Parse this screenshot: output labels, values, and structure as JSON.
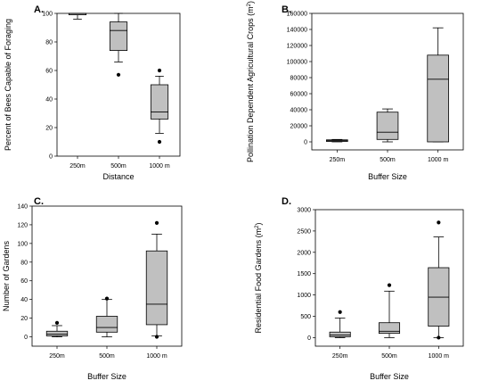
{
  "style": {
    "box_fill": "#c0c0c0",
    "stroke": "#000000",
    "outlier_color": "#000000"
  },
  "chart_data": [
    {
      "type": "box",
      "panel_label": "A.",
      "xlabel": "Distance",
      "ylabel": "Percent of Bees Capable of Foraging",
      "ylim": [
        0,
        100
      ],
      "yticks": [
        0,
        20,
        40,
        60,
        80,
        100
      ],
      "ytick_labels": [
        "0",
        "20",
        "40",
        "60",
        "80",
        "100"
      ],
      "categories": [
        "250m",
        "500m",
        "1000 m"
      ],
      "boxes": [
        {
          "whisker_low": 96,
          "q1": 99,
          "median": 100,
          "q3": 100,
          "whisker_high": 100,
          "outliers": []
        },
        {
          "whisker_low": 66,
          "q1": 74,
          "median": 88,
          "q3": 94,
          "whisker_high": 100,
          "outliers": [
            57
          ]
        },
        {
          "whisker_low": 16,
          "q1": 26,
          "median": 31,
          "q3": 50,
          "whisker_high": 56,
          "outliers": [
            60,
            10
          ]
        }
      ]
    },
    {
      "type": "box",
      "panel_label": "B.",
      "xlabel": "Buffer Size",
      "ylabel": "Pollination Dependent Agricultural Crops (m²)",
      "ylim": [
        -10000,
        160000
      ],
      "yticks": [
        0,
        20000,
        40000,
        60000,
        80000,
        100000,
        120000,
        140000,
        160000
      ],
      "ytick_labels": [
        "0",
        "20000",
        "40000",
        "60000",
        "80000",
        "100000",
        "120000",
        "140000",
        "160000"
      ],
      "categories": [
        "250m",
        "500m",
        "1000 m"
      ],
      "boxes": [
        {
          "whisker_low": 0,
          "q1": 500,
          "median": 1500,
          "q3": 2500,
          "whisker_high": 3000,
          "outliers": []
        },
        {
          "whisker_low": 0,
          "q1": 3000,
          "median": 12000,
          "q3": 37000,
          "whisker_high": 41000,
          "outliers": []
        },
        {
          "whisker_low": 0,
          "q1": 0,
          "median": 78000,
          "q3": 108000,
          "whisker_high": 142000,
          "outliers": []
        }
      ]
    },
    {
      "type": "box",
      "panel_label": "C.",
      "xlabel": "Buffer Size",
      "ylabel": "Number of Gardens",
      "ylim": [
        -10,
        140
      ],
      "yticks": [
        0,
        20,
        40,
        60,
        80,
        100,
        120,
        140
      ],
      "ytick_labels": [
        "0",
        "20",
        "40",
        "60",
        "80",
        "100",
        "120",
        "140"
      ],
      "categories": [
        "250m",
        "500m",
        "1000 m"
      ],
      "boxes": [
        {
          "whisker_low": 0,
          "q1": 1,
          "median": 3,
          "q3": 6,
          "whisker_high": 12,
          "outliers": [
            15
          ]
        },
        {
          "whisker_low": 0,
          "q1": 5,
          "median": 10,
          "q3": 22,
          "whisker_high": 40,
          "outliers": [
            41
          ]
        },
        {
          "whisker_low": 1,
          "q1": 13,
          "median": 35,
          "q3": 92,
          "whisker_high": 110,
          "outliers": [
            122,
            0
          ]
        }
      ]
    },
    {
      "type": "box",
      "panel_label": "D.",
      "xlabel": "Buffer Size",
      "ylabel": "Residential Food Gardens (m²)",
      "ylim": [
        -200,
        3000
      ],
      "yticks": [
        0,
        500,
        1000,
        1500,
        2000,
        2500,
        3000
      ],
      "ytick_labels": [
        "0",
        "500",
        "1000",
        "1500",
        "2000",
        "2500",
        "3000"
      ],
      "categories": [
        "250m",
        "500m",
        "1000 m"
      ],
      "boxes": [
        {
          "whisker_low": 0,
          "q1": 20,
          "median": 60,
          "q3": 130,
          "whisker_high": 460,
          "outliers": [
            600
          ]
        },
        {
          "whisker_low": 0,
          "q1": 100,
          "median": 150,
          "q3": 350,
          "whisker_high": 1090,
          "outliers": [
            1230
          ]
        },
        {
          "whisker_low": 0,
          "q1": 270,
          "median": 950,
          "q3": 1640,
          "whisker_high": 2360,
          "outliers": [
            2700,
            0
          ]
        }
      ]
    }
  ]
}
